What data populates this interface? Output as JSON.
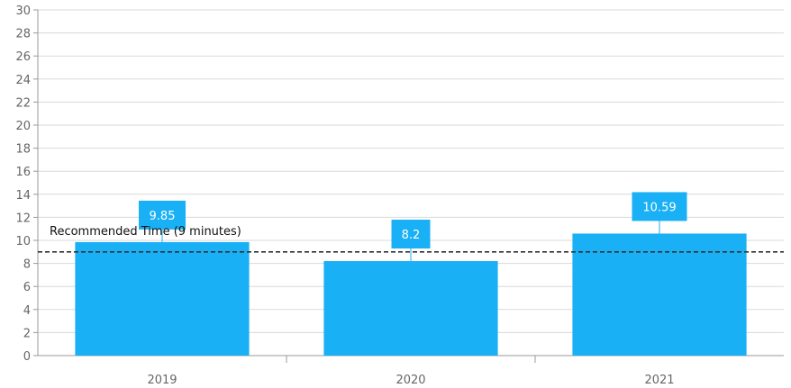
{
  "chart_data": {
    "type": "bar",
    "categories": [
      "2019",
      "2020",
      "2021"
    ],
    "values": [
      9.85,
      8.2,
      10.59
    ],
    "data_labels": [
      "9.85",
      "8.2",
      "10.59"
    ],
    "ylim": [
      0,
      30
    ],
    "y_ticks": [
      0,
      2,
      4,
      6,
      8,
      10,
      12,
      14,
      16,
      18,
      20,
      22,
      24,
      26,
      28,
      30
    ],
    "grid": true,
    "reference_line": {
      "value": 9,
      "label": "Recommended Time (9 minutes)",
      "style": "dashed"
    },
    "colors": {
      "bar": "#1ab0f5",
      "label_box": "#1ab0f5",
      "grid": "#d9d9d9",
      "axis": "#999999",
      "reference_line": "#333333"
    }
  }
}
